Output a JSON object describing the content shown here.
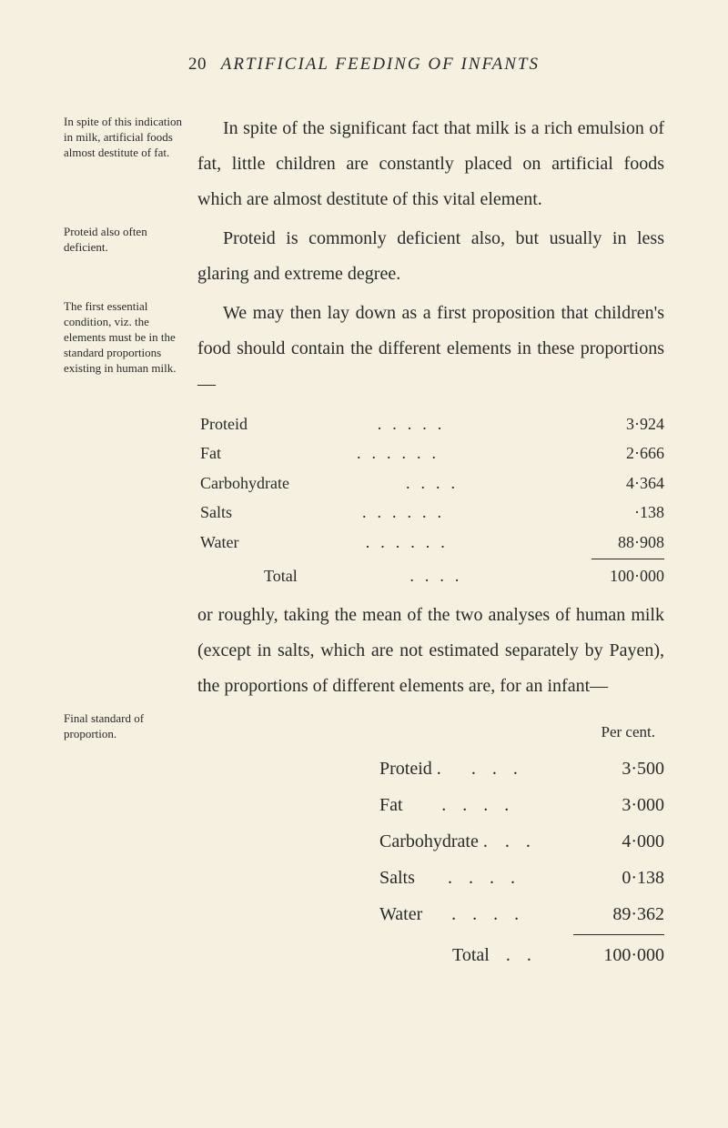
{
  "header": {
    "page_number": "20",
    "title": "ARTIFICIAL FEEDING OF INFANTS"
  },
  "sections": [
    {
      "margin": "In spite of this indication in milk, artificial foods almost destitute of fat.",
      "body": "In spite of the significant fact that milk is a rich emulsion of fat, little children are constantly placed on artificial foods which are almost destitute of this vital element.",
      "indent": true
    },
    {
      "margin": "Proteid also often deficient.",
      "body": "Proteid is commonly deficient also, but usually in less glaring and extreme degree.",
      "indent": true
    },
    {
      "margin": "The first essential condition, viz. the elements must be in the standard proportions existing in human milk.",
      "body": "We may then lay down as a first proposition that children's food should contain the different elements in these proportions—",
      "indent": true
    }
  ],
  "table1": {
    "rows": [
      {
        "label": "Proteid",
        "value": "3·924"
      },
      {
        "label": "Fat",
        "value": "2·666"
      },
      {
        "label": "Carbohydrate",
        "value": "4·364"
      },
      {
        "label": "Salts",
        "value": "·138"
      },
      {
        "label": "Water",
        "value": "88·908"
      }
    ],
    "total": {
      "label": "Total",
      "value": "100·000"
    }
  },
  "mid_paragraph": "or roughly, taking the mean of the two analyses of human milk (except in salts, which are not estimated separately by Payen), the proportions of different elements are, for an infant—",
  "table2_margin": "Final standard of proportion.",
  "table2": {
    "header": "Per cent.",
    "rows": [
      {
        "label": "Proteid .",
        "value": "3·500"
      },
      {
        "label": "Fat",
        "value": "3·000"
      },
      {
        "label": "Carbohydrate .",
        "value": "4·000"
      },
      {
        "label": "Salts",
        "value": "0·138"
      },
      {
        "label": "Water",
        "value": "89·362"
      }
    ],
    "total": {
      "label": "Total",
      "value": "100·000"
    }
  }
}
